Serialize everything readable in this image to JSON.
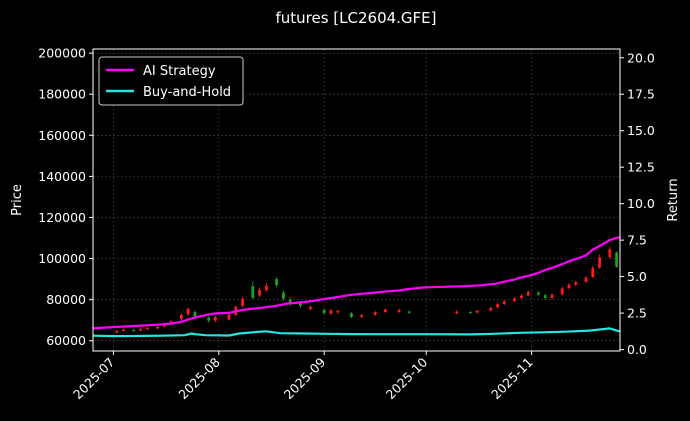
{
  "chart_data": {
    "type": "line",
    "title": "futures [LC2604.GFE]",
    "ylabel_left": "Price",
    "ylabel_right": "Return",
    "ylim_left": [
      55000,
      202000
    ],
    "ylim_right": [
      -0.1,
      20.6
    ],
    "left_ticks": [
      60000,
      80000,
      100000,
      120000,
      140000,
      160000,
      180000,
      200000
    ],
    "left_tick_labels": [
      "60000",
      "80000",
      "100000",
      "120000",
      "140000",
      "160000",
      "180000",
      "200000"
    ],
    "right_ticks": [
      0.0,
      2.5,
      5.0,
      7.5,
      10.0,
      12.5,
      15.0,
      17.5,
      20.0
    ],
    "right_tick_labels": [
      "0.0",
      "2.5",
      "5.0",
      "7.5",
      "10.0",
      "12.5",
      "15.0",
      "17.5",
      "20.0"
    ],
    "x_ticks": [
      "2025-07-01",
      "2025-08-01",
      "2025-09-01",
      "2025-10-01",
      "2025-11-01"
    ],
    "x_tick_labels": [
      "2025-07",
      "2025-08",
      "2025-09",
      "2025-10",
      "2025-11"
    ],
    "xlim": [
      "2025-06-25",
      "2025-11-27"
    ],
    "grid": true,
    "legend_position": "top-left",
    "colors": {
      "strategy": "#ff00ff",
      "buyhold": "#22e5e5",
      "candle_up": "#ff1a1a",
      "candle_down": "#1aa31a",
      "grid": "#444444",
      "axes": "#ffffff"
    },
    "series": [
      {
        "name": "AI Strategy",
        "axis": "right",
        "points": [
          [
            "2025-06-25",
            1.45
          ],
          [
            "2025-07-02",
            1.55
          ],
          [
            "2025-07-08",
            1.62
          ],
          [
            "2025-07-14",
            1.7
          ],
          [
            "2025-07-18",
            1.78
          ],
          [
            "2025-07-21",
            1.9
          ],
          [
            "2025-07-23",
            2.05
          ],
          [
            "2025-07-25",
            2.2
          ],
          [
            "2025-07-28",
            2.35
          ],
          [
            "2025-07-30",
            2.45
          ],
          [
            "2025-08-01",
            2.5
          ],
          [
            "2025-08-04",
            2.52
          ],
          [
            "2025-08-06",
            2.62
          ],
          [
            "2025-08-08",
            2.72
          ],
          [
            "2025-08-12",
            2.82
          ],
          [
            "2025-08-15",
            2.9
          ],
          [
            "2025-08-18",
            3.0
          ],
          [
            "2025-08-21",
            3.15
          ],
          [
            "2025-08-26",
            3.25
          ],
          [
            "2025-08-29",
            3.35
          ],
          [
            "2025-09-02",
            3.5
          ],
          [
            "2025-09-05",
            3.6
          ],
          [
            "2025-09-09",
            3.75
          ],
          [
            "2025-09-12",
            3.82
          ],
          [
            "2025-09-16",
            3.9
          ],
          [
            "2025-09-19",
            3.98
          ],
          [
            "2025-09-23",
            4.05
          ],
          [
            "2025-09-26",
            4.15
          ],
          [
            "2025-09-30",
            4.25
          ],
          [
            "2025-10-06",
            4.3
          ],
          [
            "2025-10-13",
            4.35
          ],
          [
            "2025-10-17",
            4.4
          ],
          [
            "2025-10-21",
            4.5
          ],
          [
            "2025-10-24",
            4.65
          ],
          [
            "2025-10-27",
            4.8
          ],
          [
            "2025-10-29",
            4.95
          ],
          [
            "2025-10-31",
            5.05
          ],
          [
            "2025-11-03",
            5.25
          ],
          [
            "2025-11-05",
            5.45
          ],
          [
            "2025-11-07",
            5.6
          ],
          [
            "2025-11-10",
            5.85
          ],
          [
            "2025-11-12",
            6.05
          ],
          [
            "2025-11-14",
            6.2
          ],
          [
            "2025-11-17",
            6.45
          ],
          [
            "2025-11-19",
            6.85
          ],
          [
            "2025-11-21",
            7.1
          ],
          [
            "2025-11-24",
            7.5
          ],
          [
            "2025-11-26",
            7.65
          ],
          [
            "2025-11-27",
            7.7
          ]
        ]
      },
      {
        "name": "Buy-and-Hold",
        "axis": "right",
        "points": [
          [
            "2025-06-25",
            0.95
          ],
          [
            "2025-07-01",
            0.92
          ],
          [
            "2025-07-08",
            0.93
          ],
          [
            "2025-07-15",
            0.95
          ],
          [
            "2025-07-22",
            0.98
          ],
          [
            "2025-07-24",
            1.1
          ],
          [
            "2025-07-25",
            1.05
          ],
          [
            "2025-07-28",
            0.98
          ],
          [
            "2025-08-04",
            0.96
          ],
          [
            "2025-08-07",
            1.1
          ],
          [
            "2025-08-12",
            1.2
          ],
          [
            "2025-08-15",
            1.25
          ],
          [
            "2025-08-19",
            1.12
          ],
          [
            "2025-08-26",
            1.1
          ],
          [
            "2025-09-02",
            1.08
          ],
          [
            "2025-09-09",
            1.06
          ],
          [
            "2025-09-16",
            1.05
          ],
          [
            "2025-09-30",
            1.05
          ],
          [
            "2025-10-14",
            1.04
          ],
          [
            "2025-10-21",
            1.08
          ],
          [
            "2025-10-28",
            1.15
          ],
          [
            "2025-11-04",
            1.18
          ],
          [
            "2025-11-11",
            1.22
          ],
          [
            "2025-11-18",
            1.3
          ],
          [
            "2025-11-24",
            1.45
          ],
          [
            "2025-11-26",
            1.3
          ],
          [
            "2025-11-27",
            1.25
          ]
        ]
      }
    ],
    "candles": [
      [
        "2025-07-02",
        64000,
        64900,
        63800,
        65200,
        "up"
      ],
      [
        "2025-07-04",
        64800,
        65500,
        64400,
        66000,
        "up"
      ],
      [
        "2025-07-07",
        65300,
        64700,
        64200,
        65800,
        "down"
      ],
      [
        "2025-07-09",
        64900,
        65800,
        64500,
        66200,
        "up"
      ],
      [
        "2025-07-11",
        65600,
        66300,
        65200,
        66800,
        "up"
      ],
      [
        "2025-07-14",
        66000,
        66800,
        65600,
        67300,
        "up"
      ],
      [
        "2025-07-16",
        66900,
        67800,
        66400,
        68400,
        "up"
      ],
      [
        "2025-07-18",
        68000,
        69500,
        67500,
        70200,
        "up"
      ],
      [
        "2025-07-21",
        70500,
        72500,
        70000,
        73600,
        "up"
      ],
      [
        "2025-07-23",
        72800,
        75500,
        72000,
        76200,
        "up"
      ],
      [
        "2025-07-25",
        74000,
        71500,
        70500,
        74800,
        "down"
      ],
      [
        "2025-07-29",
        71200,
        69800,
        68800,
        72000,
        "down"
      ],
      [
        "2025-07-31",
        69800,
        71500,
        69000,
        72200,
        "up"
      ],
      [
        "2025-08-04",
        70200,
        72800,
        69800,
        73400,
        "up"
      ],
      [
        "2025-08-06",
        72600,
        76500,
        72000,
        77200,
        "up"
      ],
      [
        "2025-08-08",
        77000,
        80500,
        76200,
        81400,
        "up"
      ],
      [
        "2025-08-11",
        80800,
        86500,
        80200,
        89000,
        "down"
      ],
      [
        "2025-08-13",
        82000,
        84800,
        81000,
        86000,
        "up"
      ],
      [
        "2025-08-15",
        84500,
        86800,
        84000,
        88200,
        "up"
      ],
      [
        "2025-08-18",
        87000,
        90000,
        86000,
        91000,
        "down"
      ],
      [
        "2025-08-20",
        83500,
        80500,
        79500,
        84500,
        "down"
      ],
      [
        "2025-08-22",
        80000,
        78000,
        77000,
        81000,
        "down"
      ],
      [
        "2025-08-25",
        78500,
        77000,
        76000,
        79500,
        "down"
      ],
      [
        "2025-08-28",
        76500,
        75500,
        74800,
        77200,
        "up"
      ],
      [
        "2025-09-01",
        75000,
        73500,
        72800,
        75800,
        "down"
      ],
      [
        "2025-09-03",
        73200,
        74800,
        72600,
        75400,
        "up"
      ],
      [
        "2025-09-05",
        74500,
        73800,
        73000,
        75200,
        "up"
      ],
      [
        "2025-09-09",
        73500,
        71500,
        70800,
        74000,
        "down"
      ],
      [
        "2025-09-12",
        71600,
        72400,
        71000,
        73000,
        "up"
      ],
      [
        "2025-09-16",
        72600,
        73900,
        72000,
        74600,
        "up"
      ],
      [
        "2025-09-19",
        74000,
        75200,
        73500,
        75800,
        "up"
      ],
      [
        "2025-09-23",
        75000,
        74000,
        73300,
        75600,
        "up"
      ],
      [
        "2025-09-26",
        74200,
        73600,
        73000,
        74800,
        "down"
      ],
      [
        "2025-10-10",
        73400,
        74200,
        72800,
        74800,
        "up"
      ],
      [
        "2025-10-14",
        74000,
        73500,
        72900,
        74600,
        "down"
      ],
      [
        "2025-10-16",
        73700,
        74600,
        73200,
        75200,
        "up"
      ],
      [
        "2025-10-20",
        74600,
        76000,
        74200,
        76600,
        "up"
      ],
      [
        "2025-10-22",
        76200,
        77800,
        75800,
        78400,
        "up"
      ],
      [
        "2025-10-24",
        77900,
        79200,
        77400,
        79800,
        "up"
      ],
      [
        "2025-10-27",
        79300,
        80600,
        78800,
        81200,
        "up"
      ],
      [
        "2025-10-29",
        80800,
        82000,
        80200,
        82600,
        "up"
      ],
      [
        "2025-10-31",
        82000,
        83800,
        81500,
        84400,
        "up"
      ],
      [
        "2025-11-03",
        83500,
        82500,
        81600,
        84000,
        "down"
      ],
      [
        "2025-11-05",
        82200,
        80800,
        80000,
        82800,
        "down"
      ],
      [
        "2025-11-07",
        80800,
        82500,
        80200,
        83200,
        "up"
      ],
      [
        "2025-11-10",
        82600,
        85500,
        82000,
        86500,
        "up"
      ],
      [
        "2025-11-12",
        85600,
        87300,
        85000,
        88000,
        "up"
      ],
      [
        "2025-11-14",
        87200,
        88500,
        86600,
        89200,
        "up"
      ],
      [
        "2025-11-17",
        88600,
        90800,
        88000,
        91500,
        "up"
      ],
      [
        "2025-11-19",
        91000,
        95500,
        90400,
        96500,
        "up"
      ],
      [
        "2025-11-21",
        95600,
        100500,
        95000,
        102000,
        "up"
      ],
      [
        "2025-11-24",
        100800,
        104500,
        99800,
        106000,
        "up"
      ],
      [
        "2025-11-26",
        103000,
        96000,
        95500,
        103500,
        "down"
      ]
    ]
  }
}
